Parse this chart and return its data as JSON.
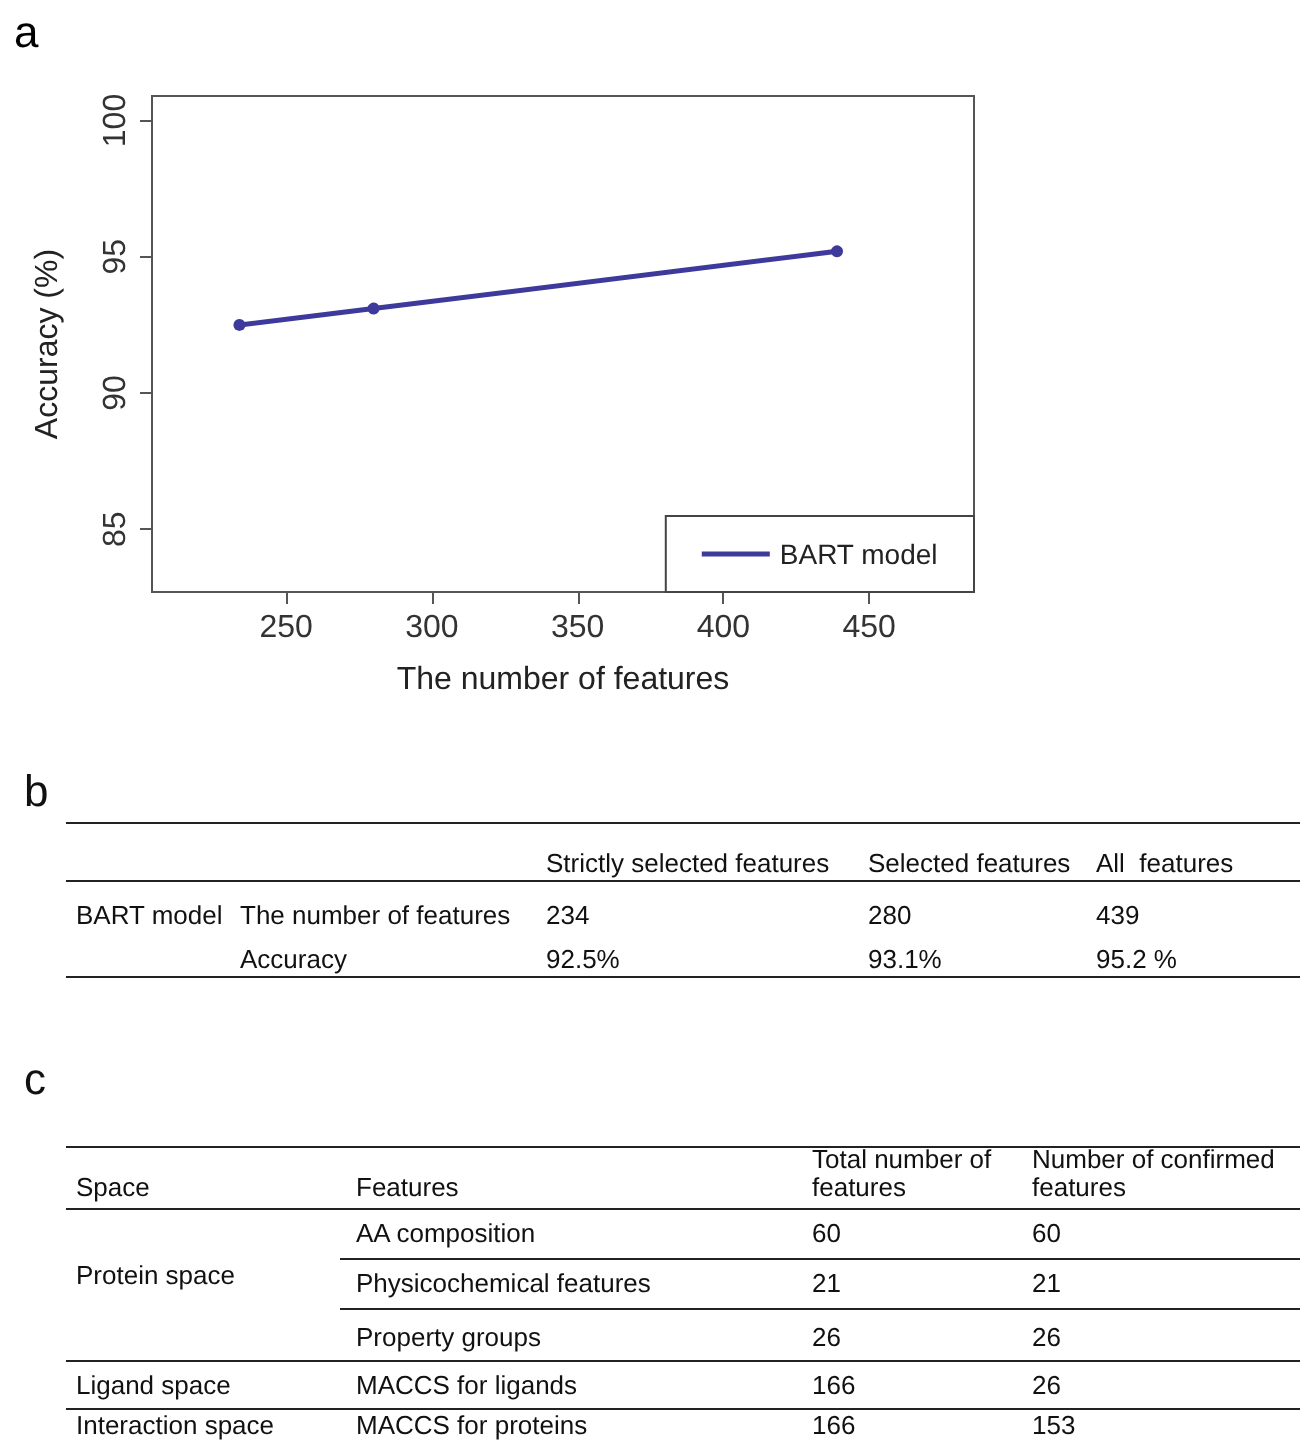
{
  "chart_data": [
    {
      "type": "line",
      "title": "a",
      "xlabel": "The number of features",
      "ylabel": "Accuracy (%)",
      "x": [
        234,
        280,
        439
      ],
      "series": [
        {
          "name": "BART model",
          "color": "#3d3a9c",
          "values": [
            92.5,
            93.1,
            95.2
          ]
        }
      ],
      "xlim": [
        204,
        486
      ],
      "xticks": [
        250,
        300,
        350,
        400,
        450
      ],
      "ylim": [
        82.7,
        100.9
      ],
      "yticks": [
        85,
        90,
        95,
        100
      ],
      "legend": "bottom right",
      "marker": "circle",
      "grid": false
    },
    {
      "type": "other",
      "title": "b",
      "annotations": [
        "Strictly selected features",
        "Selected features",
        "All  features",
        "BART model",
        "The number of features",
        "234",
        "280",
        "439",
        "Accuracy",
        "92.5%",
        "93.1%",
        "95.2 %"
      ]
    },
    {
      "type": "other",
      "title": "c",
      "annotations": [
        "Space",
        "Features",
        "Total number of features",
        "Number of confirmed features",
        "Protein space",
        "AA composition",
        "60",
        "60",
        "Physicochemical features",
        "21",
        "21",
        "Property groups",
        "26",
        "26",
        "Ligand space",
        "MACCS for ligands",
        "166",
        "26",
        "Interaction space",
        "MACCS for proteins",
        "166",
        "153"
      ]
    }
  ]
}
